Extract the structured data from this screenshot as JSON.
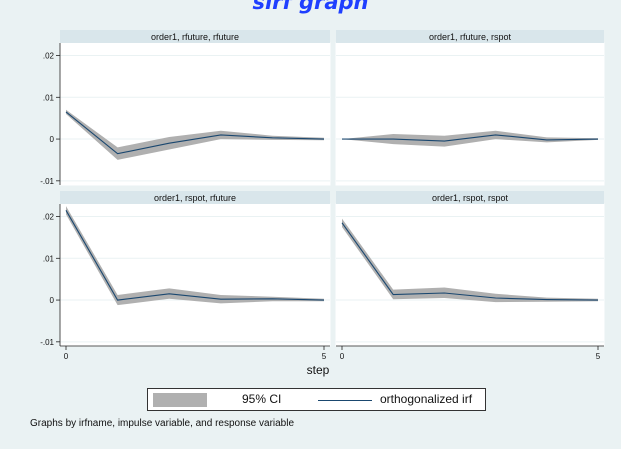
{
  "annotation": "sirf graph",
  "chart_data": {
    "type": "line",
    "xlabel": "step",
    "xlim": [
      0,
      5
    ],
    "x_ticks": [
      "0",
      "5"
    ],
    "panels": [
      {
        "title": "order1, rfuture, rfuture",
        "x": [
          0,
          1,
          2,
          3,
          4,
          5
        ],
        "irf": [
          0.0065,
          -0.0035,
          -0.001,
          0.001,
          0.0003,
          0.0
        ],
        "ci_lower": [
          0.006,
          -0.005,
          -0.0025,
          0.0,
          -0.0002,
          -0.0003
        ],
        "ci_upper": [
          0.007,
          -0.002,
          0.0005,
          0.002,
          0.0008,
          0.0003
        ]
      },
      {
        "title": "order1, rfuture, rspot",
        "x": [
          0,
          1,
          2,
          3,
          4,
          5
        ],
        "irf": [
          0.0,
          0.0,
          -0.0005,
          0.001,
          -0.0002,
          0.0
        ],
        "ci_lower": [
          0.0,
          -0.0012,
          -0.0018,
          0.0,
          -0.0008,
          -0.0002
        ],
        "ci_upper": [
          0.0,
          0.0012,
          0.0008,
          0.002,
          0.0004,
          0.0002
        ]
      },
      {
        "title": "order1, rspot, rfuture",
        "x": [
          0,
          1,
          2,
          3,
          4,
          5
        ],
        "irf": [
          0.0215,
          0.0,
          0.0015,
          0.0002,
          0.0003,
          0.0
        ],
        "ci_lower": [
          0.0205,
          -0.0012,
          0.0003,
          -0.0008,
          -0.0003,
          -0.0003
        ],
        "ci_upper": [
          0.0225,
          0.0012,
          0.0028,
          0.0012,
          0.0008,
          0.0003
        ]
      },
      {
        "title": "order1, rspot, rspot",
        "x": [
          0,
          1,
          2,
          3,
          4,
          5
        ],
        "irf": [
          0.0185,
          0.0013,
          0.0017,
          0.0005,
          0.0001,
          0.0
        ],
        "ci_lower": [
          0.0175,
          0.0002,
          0.0005,
          -0.0005,
          -0.0004,
          -0.0003
        ],
        "ci_upper": [
          0.0195,
          0.0025,
          0.003,
          0.0015,
          0.0006,
          0.0003
        ]
      }
    ],
    "rows": [
      {
        "ylim": [
          -0.011,
          0.023
        ],
        "y_ticks": [
          -0.01,
          0.0,
          0.01,
          0.02
        ],
        "y_tick_labels": [
          "-.01",
          "0",
          ".01",
          ".02"
        ]
      },
      {
        "ylim": [
          -0.011,
          0.023
        ],
        "y_ticks": [
          -0.01,
          0.0,
          0.01,
          0.02
        ],
        "y_tick_labels": [
          "-.01",
          "0",
          ".01",
          ".02"
        ]
      }
    ],
    "legend": {
      "position": "bottom",
      "entries": [
        "95% CI",
        "orthogonalized irf"
      ]
    },
    "note": "Graphs by irfname, impulse variable, and response variable",
    "colors": {
      "ci": "#b0b0b0",
      "irf": "#1a476f",
      "strip": "#d9e6eb",
      "background": "#eaf2f3"
    }
  }
}
